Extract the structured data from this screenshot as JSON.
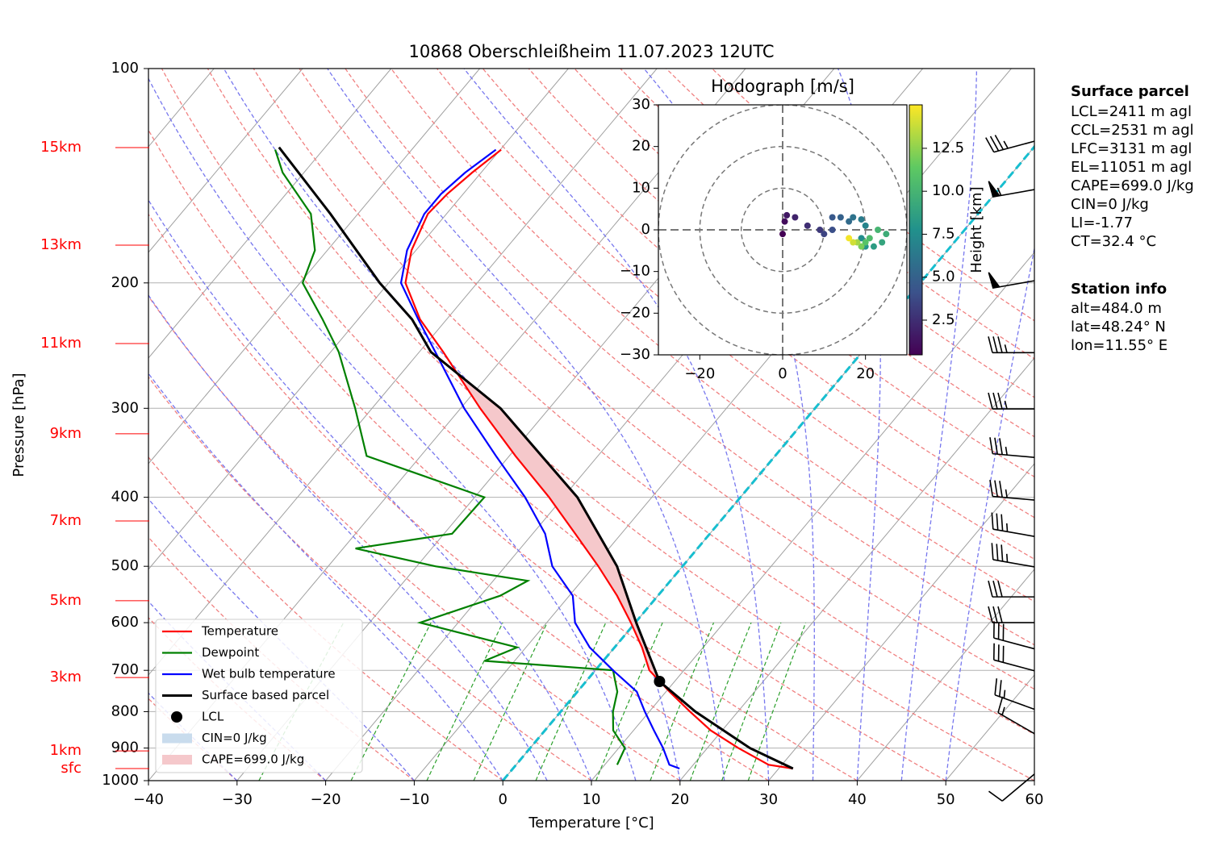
{
  "chart_data": [
    {
      "type": "skewt",
      "title": "10868 Oberschleißheim 11.07.2023 12UTC",
      "xlabel": "Temperature [°C]",
      "ylabel": "Pressure [hPa]",
      "xlim": [
        -40,
        60
      ],
      "ylim": [
        1000,
        100
      ],
      "log_y": true,
      "grid": true,
      "legend": "lower left",
      "xticks": [
        {
          "value": -40,
          "label": "−40"
        },
        {
          "value": -30,
          "label": "−30"
        },
        {
          "value": -20,
          "label": "−20"
        },
        {
          "value": -10,
          "label": "−10"
        },
        0,
        10,
        20,
        30,
        40,
        50,
        60
      ],
      "yticks": [
        100,
        200,
        300,
        400,
        500,
        600,
        700,
        800,
        900,
        1000
      ],
      "series": [
        {
          "name": "Temperature",
          "color": "#ff0000",
          "pressure": [
            961.6,
            950,
            900,
            850,
            800,
            750,
            700,
            650,
            600,
            550,
            500,
            450,
            400,
            350,
            300,
            250,
            225,
            200,
            180,
            160,
            150,
            140,
            130
          ],
          "values": [
            31.6,
            28.5,
            23.5,
            18.7,
            14.6,
            10.4,
            6.1,
            3.1,
            -0.5,
            -4.6,
            -9.5,
            -15.2,
            -21.6,
            -29.3,
            -37.8,
            -47.3,
            -53,
            -58.1,
            -60.5,
            -62.1,
            -61.8,
            -61,
            -59.9
          ]
        },
        {
          "name": "Dewpoint",
          "color": "#008000",
          "pressure": [
            950,
            900,
            850,
            800,
            750,
            700,
            679,
            650,
            600,
            550,
            524,
            500,
            472,
            450,
            400,
            350,
            300,
            250,
            225,
            200,
            180,
            160,
            140,
            130
          ],
          "values": [
            11.4,
            10.7,
            7.7,
            5.9,
            4.5,
            2,
            -13.4,
            -11,
            -24.3,
            -17.8,
            -16.1,
            -27.9,
            -38.6,
            -29.1,
            -28.9,
            -46.1,
            -51.9,
            -59.1,
            -64,
            -69.7,
            -71.4,
            -75.3,
            -82.4,
            -85.4
          ]
        },
        {
          "name": "Wet bulb temperature",
          "color": "#0000ff",
          "pressure": [
            961.6,
            950,
            900,
            850,
            800,
            750,
            700,
            650,
            600,
            550,
            500,
            450,
            400,
            350,
            300,
            250,
            225,
            200,
            180,
            160,
            150,
            140,
            130
          ],
          "values": [
            18.8,
            17.3,
            15,
            12.3,
            9.5,
            6.7,
            2,
            -2.8,
            -6.8,
            -9.6,
            -14.7,
            -18.6,
            -24.3,
            -31.5,
            -39.6,
            -48.2,
            -53.2,
            -58.6,
            -61,
            -62.5,
            -62.5,
            -61.8,
            -60.5
          ]
        },
        {
          "name": "Surface based parcel",
          "color": "#000000",
          "pressure": [
            961.6,
            900,
            800,
            725.6,
            600,
            500,
            400,
            300,
            250,
            225,
            200,
            160,
            129
          ],
          "values": [
            31.6,
            24.8,
            15.2,
            8.3,
            0.1,
            -7.4,
            -18.4,
            -35.5,
            -48.7,
            -53.9,
            -61,
            -73.1,
            -85.2
          ]
        }
      ],
      "lcl": {
        "name": "LCL",
        "pressure": 725.6,
        "value": 8.3,
        "color": "#000000"
      },
      "cin": {
        "name": "CIN=0 J/kg",
        "color": "#c9dced"
      },
      "cape": {
        "name": "CAPE=699.0 J/kg",
        "color": "#f5c8cb"
      },
      "height_levels": [
        {
          "label": "15km",
          "pressure": 129.1
        },
        {
          "label": "13km",
          "pressure": 177
        },
        {
          "label": "11km",
          "pressure": 243.3
        },
        {
          "label": "9km",
          "pressure": 325.8
        },
        {
          "label": "7km",
          "pressure": 431.8
        },
        {
          "label": "5km",
          "pressure": 558.8
        },
        {
          "label": "3km",
          "pressure": 716.4
        },
        {
          "label": "1km",
          "pressure": 908.2
        },
        {
          "label": "sfc",
          "pressure": 961.6
        }
      ],
      "height_color": "#ff0000",
      "wind": {
        "pressure": [
          126.5,
          147.9,
          198.6,
          250.6,
          300.6,
          351.6,
          403.6,
          454,
          501,
          552,
          600,
          653,
          701,
          794,
          859,
          979
        ],
        "speed": [
          35,
          55,
          50,
          35,
          35,
          35,
          35,
          35,
          35,
          30,
          30,
          30,
          30,
          25,
          15,
          10
        ],
        "direction": [
          255,
          260,
          260,
          270,
          270,
          275,
          275,
          280,
          280,
          270,
          270,
          285,
          285,
          290,
          300,
          230
        ]
      }
    },
    {
      "type": "hodograph",
      "title": "Hodograph [m/s]",
      "xlim": [
        -30,
        30
      ],
      "ylim": [
        -30,
        30
      ],
      "xticks": [
        {
          "value": -20,
          "label": "−20"
        },
        0,
        20
      ],
      "yticks": [
        30,
        20,
        10,
        0,
        {
          "value": -10,
          "label": "−10"
        },
        {
          "value": -20,
          "label": "−20"
        },
        {
          "value": -30,
          "label": "−30"
        }
      ],
      "rings": [
        10,
        20,
        30
      ],
      "u": [
        0,
        0.5,
        1,
        3,
        6,
        9,
        10,
        12,
        12,
        14,
        16,
        17,
        19,
        20,
        19,
        20,
        22,
        24,
        25,
        23,
        21,
        20,
        19,
        18,
        17,
        16
      ],
      "v": [
        -1,
        2,
        3.5,
        3,
        1,
        0,
        -1,
        0,
        3,
        3,
        2,
        3,
        2.5,
        1,
        -2,
        -4,
        -4,
        -3,
        -1,
        0,
        -2,
        -3,
        -4,
        -3,
        -3,
        -2
      ],
      "height": [
        0.5,
        1,
        1.5,
        2,
        2.5,
        3,
        3.5,
        4,
        4.5,
        5,
        5.5,
        6,
        6.5,
        7,
        7.5,
        8,
        8.5,
        9,
        9.5,
        10,
        10.5,
        11,
        12,
        13,
        14,
        14.8
      ],
      "colorbar": {
        "label": "Height [km]",
        "clim": [
          0.48,
          15.03
        ],
        "ticks": [
          2.5,
          {
            "value": 5,
            "label": "5.0"
          },
          7.5,
          {
            "value": 10,
            "label": "10.0"
          },
          12.5
        ]
      }
    }
  ],
  "info": {
    "surface_parcel": {
      "title": "Surface parcel",
      "lines": [
        "LCL=2411 m agl",
        "CCL=2531 m agl",
        "LFC=3131 m agl",
        "EL=11051 m agl",
        "CAPE=699.0 J/kg",
        "CIN=0 J/kg",
        "LI=-1.77",
        "CT=32.4 °C"
      ]
    },
    "station_info": {
      "title": "Station info",
      "lines": [
        "alt=484.0 m",
        "lat=48.24° N",
        "lon=11.55° E"
      ]
    }
  }
}
